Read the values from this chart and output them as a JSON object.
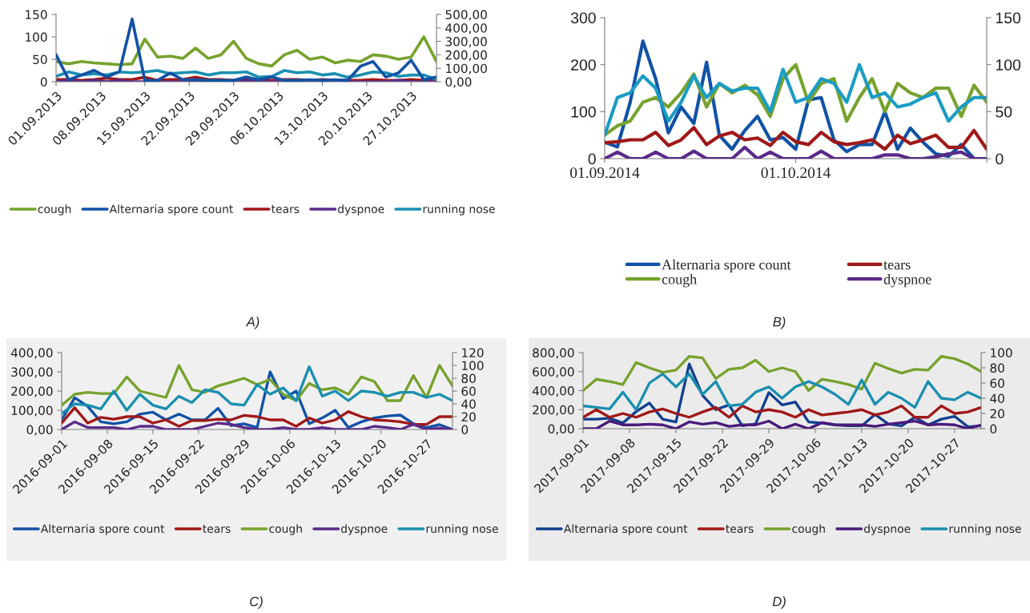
{
  "chart_data": [
    {
      "type": "line",
      "annotations": [
        "A)"
      ],
      "legend": "bottom",
      "grid": false,
      "x": [
        "2013-09-01",
        "2013-09-03",
        "2013-09-05",
        "2013-09-07",
        "2013-09-09",
        "2013-09-11",
        "2013-09-13",
        "2013-09-15",
        "2013-09-17",
        "2013-09-19",
        "2013-09-21",
        "2013-09-23",
        "2013-09-25",
        "2013-09-27",
        "2013-09-29",
        "2013-10-01",
        "2013-10-03",
        "2013-10-05",
        "2013-10-07",
        "2013-10-09",
        "2013-10-11",
        "2013-10-13",
        "2013-10-15",
        "2013-10-17",
        "2013-10-19",
        "2013-10-21",
        "2013-10-23",
        "2013-10-25",
        "2013-10-27",
        "2013-10-29",
        "2013-10-31"
      ],
      "xlim": [
        "2013-09-01",
        "2013-10-31"
      ],
      "xticks": [
        {
          "value": "2013-09-01",
          "label": "01.09.2013"
        },
        {
          "value": "2013-09-08",
          "label": "08.09.2013"
        },
        {
          "value": "2013-09-15",
          "label": "15.09.2013"
        },
        {
          "value": "2013-09-22",
          "label": "22.09.2013"
        },
        {
          "value": "2013-09-29",
          "label": "29.09.2013"
        },
        {
          "value": "2013-10-06",
          "label": "06.10.2013"
        },
        {
          "value": "2013-10-13",
          "label": "13.10.2013"
        },
        {
          "value": "2013-10-20",
          "label": "20.10.2013"
        },
        {
          "value": "2013-10-27",
          "label": "27.10.2013"
        }
      ],
      "ylim": [
        0,
        150
      ],
      "yticks": [
        0,
        50,
        100,
        150
      ],
      "y2lim": [
        0,
        500
      ],
      "y2ticks": [
        {
          "value": 0,
          "label": "0,00"
        },
        {
          "value": 100,
          "label": "100,00"
        },
        {
          "value": 200,
          "label": "200,00"
        },
        {
          "value": 300,
          "label": "300,00"
        },
        {
          "value": 400,
          "label": "400,00"
        },
        {
          "value": 500,
          "label": "500,00"
        }
      ],
      "series": [
        {
          "name": "cough",
          "color": "#77a22d",
          "values": [
            45,
            40,
            45,
            42,
            40,
            38,
            40,
            95,
            55,
            57,
            52,
            75,
            52,
            60,
            90,
            52,
            40,
            35,
            60,
            70,
            50,
            55,
            42,
            48,
            45,
            60,
            57,
            50,
            55,
            100,
            45
          ]
        },
        {
          "name": "Alternaria spore count",
          "color": "#1152a6",
          "axis": "y2",
          "values": [
            200,
            15,
            50,
            85,
            35,
            75,
            465,
            10,
            10,
            65,
            15,
            15,
            10,
            10,
            10,
            35,
            15,
            35,
            10,
            10,
            15,
            10,
            15,
            10,
            115,
            150,
            35,
            65,
            160,
            15,
            35
          ]
        },
        {
          "name": "tears",
          "color": "#a01818",
          "values": [
            5,
            5,
            3,
            5,
            8,
            5,
            5,
            10,
            3,
            5,
            5,
            10,
            5,
            5,
            3,
            5,
            3,
            3,
            5,
            5,
            3,
            5,
            3,
            3,
            3,
            5,
            3,
            3,
            5,
            3,
            3
          ]
        },
        {
          "name": "dyspnoe",
          "color": "#5a2a8a",
          "values": [
            0,
            3,
            0,
            3,
            0,
            3,
            0,
            0,
            0,
            0,
            0,
            0,
            0,
            0,
            0,
            3,
            0,
            0,
            0,
            0,
            0,
            0,
            0,
            0,
            0,
            0,
            0,
            3,
            0,
            0,
            0
          ]
        },
        {
          "name": "running nose",
          "color": "#1a8fb0",
          "values": [
            12,
            22,
            15,
            18,
            15,
            22,
            20,
            22,
            25,
            18,
            20,
            22,
            15,
            20,
            20,
            22,
            10,
            12,
            25,
            20,
            22,
            15,
            18,
            10,
            15,
            22,
            20,
            12,
            15,
            15,
            5
          ]
        }
      ]
    },
    {
      "type": "line",
      "annotations": [
        "B)"
      ],
      "legend": "bottom",
      "grid": false,
      "x": [
        "2014-09-01",
        "2014-09-03",
        "2014-09-05",
        "2014-09-07",
        "2014-09-09",
        "2014-09-11",
        "2014-09-13",
        "2014-09-15",
        "2014-09-17",
        "2014-09-19",
        "2014-09-21",
        "2014-09-23",
        "2014-09-25",
        "2014-09-27",
        "2014-09-29",
        "2014-10-01",
        "2014-10-03",
        "2014-10-05",
        "2014-10-07",
        "2014-10-09",
        "2014-10-11",
        "2014-10-13",
        "2014-10-15",
        "2014-10-17",
        "2014-10-19",
        "2014-10-21",
        "2014-10-23",
        "2014-10-25",
        "2014-10-27",
        "2014-10-29",
        "2014-10-31"
      ],
      "xlim": [
        "2014-09-01",
        "2014-10-31"
      ],
      "xticks": [
        {
          "value": "2014-09-01",
          "label": "01.09.2014"
        },
        {
          "value": "2014-10-01",
          "label": "01.10.2014"
        },
        {
          "value": "2014-10-31",
          "label": null
        }
      ],
      "ylim": [
        0,
        300
      ],
      "yticks": [
        0,
        100,
        200,
        300
      ],
      "y2lim": [
        0,
        150
      ],
      "y2ticks": [
        0,
        50,
        100,
        150
      ],
      "series": [
        {
          "name": "Alternaria spore count",
          "color": "#1152a6",
          "values": [
            35,
            25,
            120,
            250,
            170,
            55,
            110,
            75,
            205,
            50,
            20,
            60,
            90,
            40,
            45,
            20,
            125,
            130,
            40,
            15,
            30,
            30,
            100,
            20,
            65,
            35,
            10,
            5,
            30,
            0,
            0
          ]
        },
        {
          "name": "cough",
          "color": "#77a22d",
          "axis": "y2",
          "values": [
            25,
            35,
            40,
            60,
            65,
            55,
            70,
            90,
            55,
            80,
            70,
            78,
            68,
            45,
            85,
            100,
            60,
            80,
            85,
            40,
            65,
            85,
            50,
            80,
            70,
            65,
            75,
            75,
            45,
            78,
            60
          ]
        },
        {
          "name": "tears",
          "color": "#a01818",
          "axis": "y2",
          "values": [
            17,
            18,
            20,
            20,
            28,
            14,
            20,
            33,
            15,
            24,
            28,
            20,
            22,
            14,
            28,
            18,
            15,
            28,
            18,
            15,
            17,
            20,
            10,
            25,
            16,
            20,
            25,
            12,
            12,
            30,
            10
          ]
        },
        {
          "name": "dyspnoe",
          "color": "#5a2a8a",
          "axis": "y2",
          "values": [
            0,
            7,
            0,
            0,
            7,
            0,
            0,
            8,
            0,
            0,
            0,
            12,
            0,
            7,
            0,
            0,
            0,
            8,
            0,
            0,
            0,
            0,
            4,
            4,
            0,
            0,
            2,
            5,
            7,
            0,
            0
          ]
        },
        {
          "color": "#1a9cc4",
          "axis": "y2",
          "values": [
            25,
            65,
            70,
            88,
            75,
            40,
            60,
            88,
            65,
            80,
            72,
            75,
            75,
            50,
            95,
            60,
            65,
            85,
            80,
            60,
            100,
            65,
            70,
            55,
            58,
            65,
            70,
            40,
            55,
            65,
            65
          ]
        }
      ]
    },
    {
      "type": "line",
      "annotations": [
        "C)"
      ],
      "legend": "bottom",
      "grid": false,
      "x": [
        "2016-09-01",
        "2016-09-03",
        "2016-09-05",
        "2016-09-07",
        "2016-09-09",
        "2016-09-11",
        "2016-09-13",
        "2016-09-15",
        "2016-09-17",
        "2016-09-19",
        "2016-09-21",
        "2016-09-23",
        "2016-09-25",
        "2016-09-27",
        "2016-09-29",
        "2016-10-01",
        "2016-10-03",
        "2016-10-05",
        "2016-10-07",
        "2016-10-09",
        "2016-10-11",
        "2016-10-13",
        "2016-10-15",
        "2016-10-17",
        "2016-10-19",
        "2016-10-21",
        "2016-10-23",
        "2016-10-25",
        "2016-10-27",
        "2016-10-29",
        "2016-10-31"
      ],
      "xlim": [
        "2016-09-01",
        "2016-10-31"
      ],
      "xticks": [
        {
          "value": "2016-09-01",
          "label": "2016-09-01"
        },
        {
          "value": "2016-09-08",
          "label": "2016-09-08"
        },
        {
          "value": "2016-09-15",
          "label": "2016-09-15"
        },
        {
          "value": "2016-09-22",
          "label": "2016-09-22"
        },
        {
          "value": "2016-09-29",
          "label": "2016-09-29"
        },
        {
          "value": "2016-10-06",
          "label": "2016-10-06"
        },
        {
          "value": "2016-10-13",
          "label": "2016-10-13"
        },
        {
          "value": "2016-10-20",
          "label": "2016-10-20"
        },
        {
          "value": "2016-10-27",
          "label": "2016-10-27"
        }
      ],
      "ylim": [
        0,
        400
      ],
      "yticks": [
        {
          "value": 0,
          "label": "0,00"
        },
        {
          "value": 100,
          "label": "100,00"
        },
        {
          "value": 200,
          "label": "200,00"
        },
        {
          "value": 300,
          "label": "300,00"
        },
        {
          "value": 400,
          "label": "400,00"
        }
      ],
      "y2lim": [
        0,
        120
      ],
      "y2ticks": [
        0,
        20,
        40,
        60,
        80,
        100,
        120
      ],
      "series": [
        {
          "name": "Alternaria spore count",
          "color": "#1152a6",
          "values": [
            50,
            165,
            120,
            40,
            30,
            40,
            80,
            90,
            50,
            80,
            50,
            50,
            110,
            20,
            30,
            10,
            300,
            160,
            200,
            30,
            60,
            100,
            10,
            40,
            60,
            70,
            75,
            30,
            10,
            25,
            0
          ]
        },
        {
          "name": "tears",
          "color": "#a01818",
          "axis": "y2",
          "values": [
            10,
            34,
            10,
            19,
            16,
            20,
            20,
            10,
            15,
            5,
            14,
            14,
            16,
            15,
            22,
            20,
            15,
            15,
            5,
            18,
            10,
            15,
            28,
            20,
            15,
            14,
            12,
            8,
            8,
            20,
            20
          ]
        },
        {
          "name": "cough",
          "color": "#77a22d",
          "axis": "y2",
          "values": [
            38,
            55,
            58,
            56,
            56,
            82,
            60,
            55,
            50,
            100,
            62,
            58,
            68,
            74,
            80,
            70,
            78,
            55,
            45,
            72,
            62,
            65,
            55,
            82,
            75,
            45,
            45,
            84,
            50,
            100,
            68
          ]
        },
        {
          "name": "dyspnoe",
          "color": "#5a2a8a",
          "axis": "y2",
          "values": [
            0,
            12,
            3,
            3,
            3,
            0,
            5,
            5,
            0,
            0,
            0,
            5,
            10,
            8,
            3,
            0,
            0,
            3,
            0,
            0,
            3,
            0,
            0,
            0,
            5,
            3,
            0,
            8,
            0,
            2,
            0
          ]
        },
        {
          "name": "running nose",
          "color": "#1a8fb0",
          "axis": "y2",
          "values": [
            25,
            40,
            38,
            32,
            60,
            30,
            55,
            38,
            32,
            52,
            42,
            62,
            58,
            40,
            38,
            70,
            55,
            65,
            45,
            98,
            52,
            60,
            45,
            60,
            58,
            52,
            58,
            58,
            50,
            55,
            45
          ]
        }
      ]
    },
    {
      "type": "line",
      "annotations": [
        "D)"
      ],
      "legend": "bottom",
      "grid": false,
      "x": [
        "2017-09-01",
        "2017-09-03",
        "2017-09-05",
        "2017-09-07",
        "2017-09-09",
        "2017-09-11",
        "2017-09-13",
        "2017-09-15",
        "2017-09-17",
        "2017-09-19",
        "2017-09-21",
        "2017-09-23",
        "2017-09-25",
        "2017-09-27",
        "2017-09-29",
        "2017-10-01",
        "2017-10-03",
        "2017-10-05",
        "2017-10-07",
        "2017-10-09",
        "2017-10-11",
        "2017-10-13",
        "2017-10-15",
        "2017-10-17",
        "2017-10-19",
        "2017-10-21",
        "2017-10-23",
        "2017-10-25",
        "2017-10-27",
        "2017-10-29",
        "2017-10-31"
      ],
      "xlim": [
        "2017-09-01",
        "2017-10-31"
      ],
      "xticks": [
        {
          "value": "2017-09-01",
          "label": "2017-09-01"
        },
        {
          "value": "2017-09-08",
          "label": "2017-09-08"
        },
        {
          "value": "2017-09-15",
          "label": "2017-09-15"
        },
        {
          "value": "2017-09-22",
          "label": "2017-09-22"
        },
        {
          "value": "2017-09-29",
          "label": "2017-09-29"
        },
        {
          "value": "2017-10-06",
          "label": "2017-10-06"
        },
        {
          "value": "2017-10-13",
          "label": "2017-10-13"
        },
        {
          "value": "2017-10-20",
          "label": "2017-10-20"
        },
        {
          "value": "2017-10-27",
          "label": "2017-10-27"
        }
      ],
      "ylim": [
        0,
        800
      ],
      "yticks": [
        {
          "value": 0,
          "label": "0,00"
        },
        {
          "value": 200,
          "label": "200,00"
        },
        {
          "value": 400,
          "label": "400,00"
        },
        {
          "value": 600,
          "label": "600,00"
        },
        {
          "value": 800,
          "label": "800,00"
        }
      ],
      "y2lim": [
        0,
        100
      ],
      "y2ticks": [
        0,
        20,
        40,
        60,
        80,
        100
      ],
      "series": [
        {
          "name": "Alternaria spore count",
          "color": "#123f8f",
          "values": [
            100,
            100,
            110,
            60,
            180,
            270,
            100,
            70,
            680,
            350,
            200,
            250,
            30,
            50,
            380,
            250,
            280,
            70,
            60,
            40,
            30,
            30,
            150,
            50,
            30,
            120,
            40,
            100,
            130,
            20,
            30
          ]
        },
        {
          "name": "tears",
          "color": "#a01818",
          "axis": "y2",
          "values": [
            15,
            25,
            15,
            20,
            15,
            22,
            26,
            20,
            15,
            22,
            28,
            15,
            30,
            22,
            25,
            22,
            15,
            25,
            18,
            20,
            22,
            25,
            18,
            22,
            30,
            15,
            15,
            30,
            20,
            22,
            28
          ]
        },
        {
          "name": "cough",
          "color": "#77a22d",
          "axis": "y2",
          "values": [
            50,
            65,
            62,
            58,
            87,
            80,
            74,
            77,
            95,
            93,
            66,
            78,
            80,
            90,
            75,
            80,
            75,
            50,
            65,
            62,
            58,
            52,
            86,
            79,
            73,
            78,
            77,
            95,
            92,
            85,
            75
          ]
        },
        {
          "name": "dyspnoe",
          "color": "#4a1a7a",
          "axis": "y2",
          "values": [
            0,
            0,
            10,
            5,
            5,
            6,
            5,
            0,
            9,
            6,
            8,
            3,
            5,
            5,
            10,
            0,
            6,
            0,
            8,
            5,
            5,
            5,
            3,
            6,
            8,
            10,
            5,
            6,
            5,
            0,
            5
          ]
        },
        {
          "name": "running nose",
          "color": "#1a8fb0",
          "axis": "y2",
          "values": [
            30,
            28,
            26,
            48,
            25,
            60,
            72,
            55,
            72,
            45,
            62,
            30,
            32,
            48,
            55,
            40,
            55,
            62,
            55,
            45,
            32,
            64,
            32,
            48,
            40,
            28,
            62,
            40,
            38,
            48,
            40
          ]
        }
      ]
    }
  ]
}
